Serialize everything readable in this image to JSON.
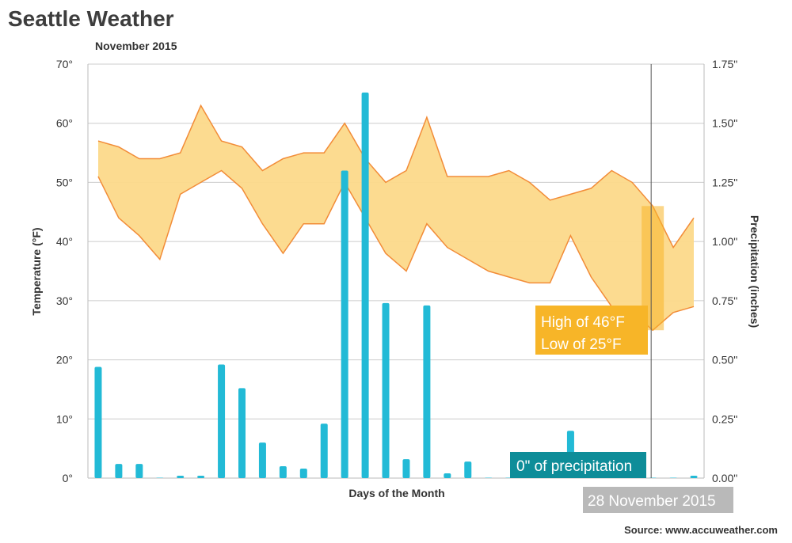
{
  "title": "Seattle Weather",
  "subtitle": "November 2015",
  "source": "Source: www.accuweather.com",
  "tooltip": {
    "date_label": "28 November 2015",
    "temp_high_text": "High of 46°F",
    "temp_low_text": "Low of 25°F",
    "precip_text": "0\" of precipitation"
  },
  "colors": {
    "band_fill": "#fcd98a",
    "band_line": "#f28c38",
    "bars": "#22bad6",
    "temp_tooltip": "#f7b528",
    "precip_tooltip": "#0e8d99",
    "date_tooltip": "#b9b9b9",
    "grid": "#cccccc"
  },
  "chart_data": {
    "type": "area",
    "xlabel": "Days of the Month",
    "ylabel": "Temperature (°F)",
    "ylabel_right": "Precipitation (inches)",
    "ylim": [
      0,
      70
    ],
    "ylim_right": [
      0,
      1.75
    ],
    "yticks": [
      "0°",
      "10°",
      "20°",
      "30°",
      "40°",
      "50°",
      "60°",
      "70°"
    ],
    "yticks_right": [
      "0.00\"",
      "0.25\"",
      "0.50\"",
      "0.75\"",
      "1.00\"",
      "1.25\"",
      "1.50\"",
      "1.75\""
    ],
    "grid": true,
    "x": [
      1,
      2,
      3,
      4,
      5,
      6,
      7,
      8,
      9,
      10,
      11,
      12,
      13,
      14,
      15,
      16,
      17,
      18,
      19,
      20,
      21,
      22,
      23,
      24,
      25,
      26,
      27,
      28,
      29,
      30
    ],
    "series": [
      {
        "type": "arearange",
        "high": [
          57,
          56,
          54,
          54,
          55,
          63,
          57,
          56,
          52,
          54,
          55,
          55,
          60,
          54,
          50,
          52,
          61,
          51,
          51,
          51,
          52,
          50,
          47,
          48,
          49,
          52,
          50,
          46,
          39,
          44
        ],
        "low": [
          51,
          44,
          41,
          37,
          48,
          50,
          52,
          49,
          43,
          38,
          43,
          43,
          50,
          44,
          38,
          35,
          43,
          39,
          37,
          35,
          34,
          33,
          33,
          41,
          34,
          29,
          28,
          25,
          28,
          29
        ]
      },
      {
        "type": "bar",
        "axis": "right",
        "values": [
          0.47,
          0.06,
          0.06,
          0,
          0.01,
          0.01,
          0.48,
          0.38,
          0.15,
          0.05,
          0.04,
          0.23,
          1.3,
          1.63,
          0.74,
          0.08,
          0.73,
          0.02,
          0.07,
          0,
          0,
          0,
          0,
          0.2,
          0,
          0,
          0,
          0,
          0,
          0.01
        ]
      }
    ],
    "highlight_day": 28
  }
}
